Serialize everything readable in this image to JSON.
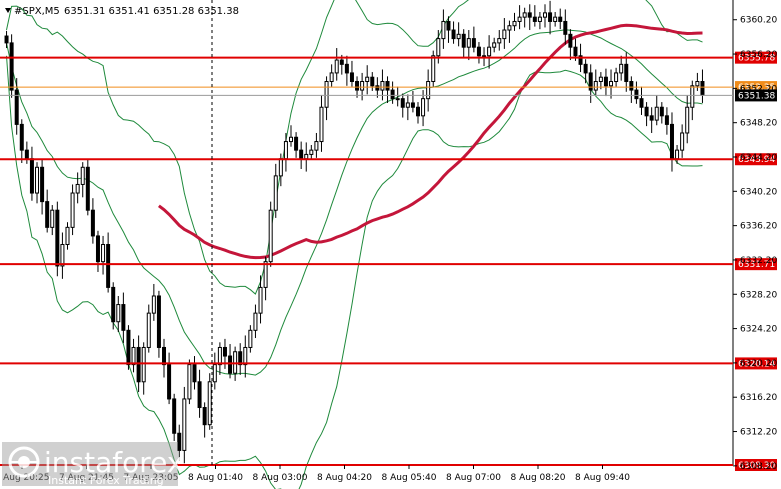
{
  "header": {
    "symbol": "#SPX,M5",
    "ohlc": "6351.31 6351.41 6351.28 6351.38"
  },
  "chart_data": {
    "type": "candlestick",
    "symbol": "#SPX",
    "timeframe": "M5",
    "ylim": [
      6308.3,
      6362.5
    ],
    "y_ticks": [
      "6360.20",
      "6356.20",
      "6352.20",
      "6348.20",
      "6344.20",
      "6340.20",
      "6336.20",
      "6332.20",
      "6328.20",
      "6324.20",
      "6320.20",
      "6316.20",
      "6312.20",
      "6308.20"
    ],
    "x_ticks": [
      "7 Aug 20:25",
      "7 Aug 21:45",
      "7 Aug 23:05",
      "8 Aug 01:40",
      "8 Aug 03:00",
      "8 Aug 04:20",
      "8 Aug 05:40",
      "8 Aug 07:00",
      "8 Aug 08:20",
      "8 Aug 09:40"
    ],
    "horizontal_levels": [
      {
        "value": 6355.78,
        "label": "6355.78"
      },
      {
        "value": 6343.94,
        "label": "6343.94"
      },
      {
        "value": 6331.71,
        "label": "6331.71"
      },
      {
        "value": 6320.14,
        "label": "6320.14"
      },
      {
        "value": 6308.3,
        "label": "6308.30"
      }
    ],
    "current_price": {
      "value": 6351.38,
      "label": "6351.38"
    },
    "orange_level": {
      "value": 6352.35,
      "label": "6352.35"
    },
    "session_separator_x_label": "7 Aug 23:05",
    "close_series": [
      6357.5,
      6352.0,
      6348.0,
      6345.0,
      6344.0,
      6340.0,
      6343.0,
      6339.0,
      6336.0,
      6338.0,
      6331.5,
      6334.0,
      6336.0,
      6340.0,
      6341.0,
      6343.0,
      6338.0,
      6335.0,
      6332.0,
      6334.0,
      6329.0,
      6325.0,
      6327.0,
      6324.0,
      6320.0,
      6322.0,
      6318.0,
      6322.0,
      6326.0,
      6328.0,
      6322.0,
      6320.0,
      6316.0,
      6312.0,
      6310.0,
      6316.0,
      6320.0,
      6318.0,
      6315.0,
      6313.0,
      6318.0,
      6320.0,
      6322.0,
      6321.0,
      6319.0,
      6321.5,
      6320.0,
      6322.0,
      6324.0,
      6326.0,
      6329.0,
      6332.0,
      6338.0,
      6342.0,
      6344.0,
      6346.0,
      6346.5,
      6345.0,
      6344.0,
      6344.5,
      6345.0,
      6346.0,
      6350.0,
      6353.0,
      6354.0,
      6355.5,
      6355.0,
      6354.0,
      6353.0,
      6352.0,
      6353.0,
      6353.5,
      6352.5,
      6352.0,
      6353.0,
      6352.0,
      6351.0,
      6351.0,
      6350.0,
      6350.5,
      6350.0,
      6349.0,
      6351.0,
      6353.0,
      6356.0,
      6358.0,
      6360.0,
      6359.0,
      6358.0,
      6358.5,
      6357.0,
      6358.0,
      6357.0,
      6356.0,
      6356.0,
      6357.0,
      6357.5,
      6358.0,
      6359.0,
      6359.5,
      6360.0,
      6360.5,
      6361.0,
      6360.5,
      6360.0,
      6360.5,
      6361.0,
      6360.0,
      6360.5,
      6360.0,
      6358.5,
      6357.0,
      6356.0,
      6355.0,
      6354.0,
      6352.0,
      6353.0,
      6353.5,
      6352.5,
      6353.0,
      6354.0,
      6355.0,
      6353.0,
      6352.0,
      6351.0,
      6350.0,
      6349.0,
      6348.5,
      6350.0,
      6349.0,
      6348.0,
      6344.0,
      6345.0,
      6347.0,
      6350.0,
      6352.5,
      6353.0,
      6351.4
    ]
  }
}
